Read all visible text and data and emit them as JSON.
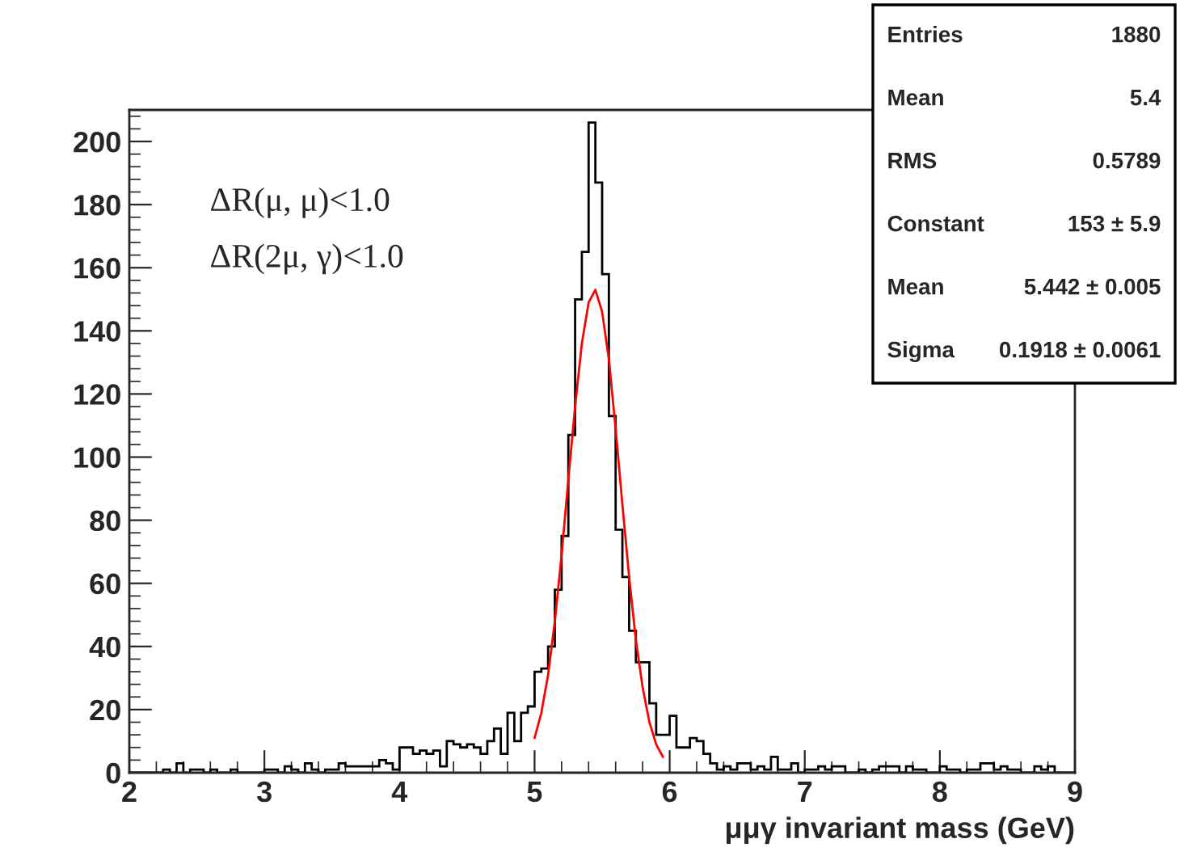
{
  "chart_data": {
    "type": "histogram",
    "xlabel": "μμγ invariant mass (GeV)",
    "bins": [
      2.0,
      2.05,
      2.1,
      2.15,
      2.2,
      2.25,
      2.3,
      2.35,
      2.4,
      2.45,
      2.5,
      2.55,
      2.6,
      2.65,
      2.7,
      2.75,
      2.8,
      2.85,
      2.9,
      2.95,
      3.0,
      3.05,
      3.1,
      3.15,
      3.2,
      3.25,
      3.3,
      3.35,
      3.4,
      3.45,
      3.5,
      3.55,
      3.6,
      3.65,
      3.7,
      3.75,
      3.8,
      3.85,
      3.9,
      3.95,
      4.0,
      4.05,
      4.1,
      4.15,
      4.2,
      4.25,
      4.3,
      4.35,
      4.4,
      4.45,
      4.5,
      4.55,
      4.6,
      4.65,
      4.7,
      4.75,
      4.8,
      4.85,
      4.9,
      4.95,
      5.0,
      5.05,
      5.1,
      5.15,
      5.2,
      5.25,
      5.3,
      5.35,
      5.4,
      5.45,
      5.5,
      5.55,
      5.6,
      5.65,
      5.7,
      5.75,
      5.8,
      5.85,
      5.9,
      5.95,
      6.0,
      6.05,
      6.1,
      6.15,
      6.2,
      6.25,
      6.3,
      6.35,
      6.4,
      6.45,
      6.5,
      6.55,
      6.6,
      6.65,
      6.7,
      6.75,
      6.8,
      6.85,
      6.9,
      6.95,
      7.0,
      7.05,
      7.1,
      7.15,
      7.2,
      7.25,
      7.3,
      7.35,
      7.4,
      7.45,
      7.5,
      7.55,
      7.6,
      7.65,
      7.7,
      7.75,
      7.8,
      7.85,
      7.9,
      7.95,
      8.0,
      8.05,
      8.1,
      8.15,
      8.2,
      8.25,
      8.3,
      8.35,
      8.4,
      8.45,
      8.5,
      8.55,
      8.6,
      8.65,
      8.7,
      8.75,
      8.8,
      8.85,
      8.9,
      8.95,
      9.0
    ],
    "values": [
      0,
      0,
      0,
      0,
      0,
      1,
      0,
      3,
      0,
      1,
      1,
      0,
      1,
      0,
      0,
      1,
      0,
      0,
      0,
      0,
      1,
      1,
      0,
      2,
      1,
      0,
      3,
      1,
      0,
      1,
      1,
      3,
      2,
      2,
      2,
      2,
      2,
      4,
      3,
      1,
      8,
      8,
      6,
      7,
      6,
      7,
      2,
      10,
      9,
      8,
      9,
      8,
      6,
      10,
      14,
      6,
      19,
      10,
      19,
      21,
      32,
      33,
      40,
      58,
      75,
      107,
      150,
      165,
      206,
      187,
      158,
      113,
      77,
      62,
      45,
      35,
      35,
      22,
      12,
      12,
      18,
      8,
      8,
      11,
      10,
      6,
      3,
      1,
      2,
      1,
      3,
      3,
      1,
      2,
      1,
      5,
      1,
      1,
      3,
      0,
      1,
      1,
      2,
      1,
      2,
      2,
      0,
      0,
      1,
      0,
      1,
      2,
      2,
      2,
      0,
      2,
      1,
      1,
      0,
      0,
      2,
      1,
      1,
      0,
      1,
      1,
      3,
      3,
      1,
      2,
      1,
      1,
      0,
      0,
      2,
      1,
      2,
      0,
      0,
      0
    ],
    "color": "#000000",
    "series": [
      {
        "type": "line",
        "color": "#ff0000",
        "x": [
          5.0,
          5.05,
          5.1,
          5.15,
          5.2,
          5.25,
          5.3,
          5.35,
          5.4,
          5.45,
          5.5,
          5.55,
          5.6,
          5.65,
          5.7,
          5.75,
          5.8,
          5.85,
          5.9,
          5.95
        ],
        "values": [
          11,
          19,
          31,
          48,
          69,
          93,
          116,
          136,
          149,
          153,
          146,
          131,
          109,
          85,
          62,
          42,
          27,
          16,
          9,
          5
        ]
      }
    ],
    "xlim": [
      2,
      9
    ],
    "xticks": [
      2,
      3,
      4,
      5,
      6,
      7,
      8,
      9
    ],
    "ylim": [
      0,
      210
    ],
    "yticks": [
      0,
      20,
      40,
      60,
      80,
      100,
      120,
      140,
      160,
      180,
      200
    ],
    "grid": false,
    "legend": false,
    "annotations": [
      "ΔR(μ, μ)<1.0",
      "ΔR(2μ, γ)<1.0",
      "Entries",
      "1880",
      "Mean",
      "5.4",
      "RMS",
      "0.5789",
      "Constant",
      "153 ± 5.9",
      "Mean",
      "5.442 ± 0.005",
      "Sigma",
      "0.1918 ± 0.0061"
    ]
  }
}
